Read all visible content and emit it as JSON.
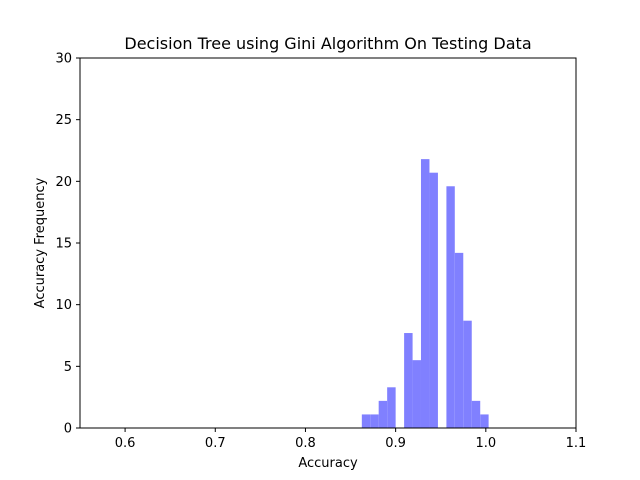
{
  "chart_data": {
    "type": "bar",
    "title": "Decision Tree using Gini Algorithm On Testing Data",
    "xlabel": "Accuracy",
    "ylabel": "Accuracy Frequency",
    "xlim": [
      0.55,
      1.1
    ],
    "ylim": [
      0,
      30
    ],
    "xticks": [
      0.6,
      0.7,
      0.8,
      0.9,
      1.0,
      1.1
    ],
    "xtick_labels": [
      "0.6",
      "0.7",
      "0.8",
      "0.9",
      "1.0",
      "1.1"
    ],
    "yticks": [
      0,
      5,
      10,
      15,
      20,
      25,
      30
    ],
    "ytick_labels": [
      "0",
      "5",
      "10",
      "15",
      "20",
      "25",
      "30"
    ],
    "bar_color": "#8080ff",
    "grid": false,
    "legend": false,
    "bins": [
      {
        "x0": 0.8625,
        "x1": 0.8718,
        "value": 1.1
      },
      {
        "x0": 0.8718,
        "x1": 0.8812,
        "value": 1.1
      },
      {
        "x0": 0.8812,
        "x1": 0.8906,
        "value": 2.2
      },
      {
        "x0": 0.8906,
        "x1": 0.9,
        "value": 3.3
      },
      {
        "x0": 0.9,
        "x1": 0.9094,
        "value": 0
      },
      {
        "x0": 0.9094,
        "x1": 0.9188,
        "value": 7.7
      },
      {
        "x0": 0.9188,
        "x1": 0.9281,
        "value": 5.5
      },
      {
        "x0": 0.9281,
        "x1": 0.9375,
        "value": 21.8
      },
      {
        "x0": 0.9375,
        "x1": 0.9469,
        "value": 20.7
      },
      {
        "x0": 0.9469,
        "x1": 0.9563,
        "value": 0
      },
      {
        "x0": 0.9563,
        "x1": 0.9656,
        "value": 19.6
      },
      {
        "x0": 0.9656,
        "x1": 0.975,
        "value": 14.2
      },
      {
        "x0": 0.975,
        "x1": 0.9844,
        "value": 8.7
      },
      {
        "x0": 0.9844,
        "x1": 0.9938,
        "value": 2.2
      },
      {
        "x0": 0.9938,
        "x1": 1.0031,
        "value": 1.1
      }
    ]
  }
}
